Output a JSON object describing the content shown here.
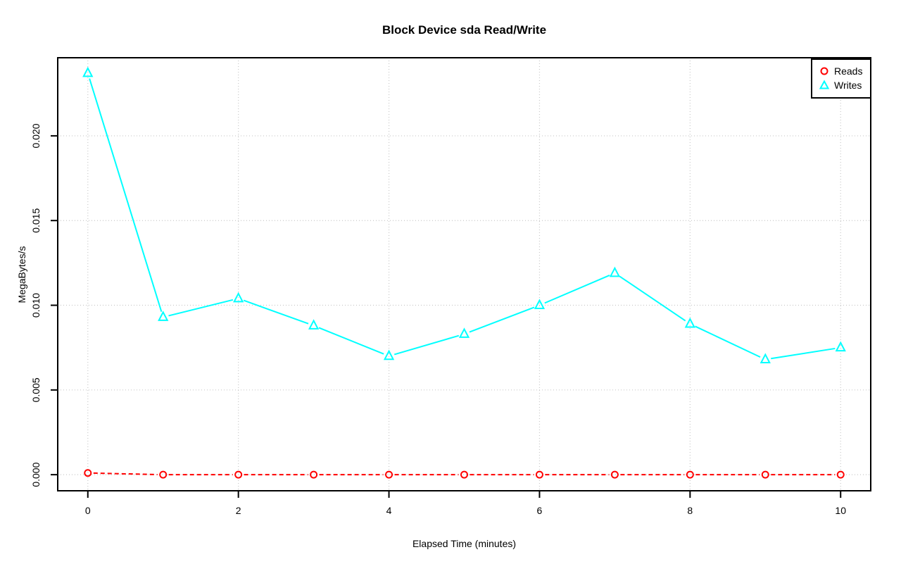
{
  "title": "Block Device sda Read/Write",
  "chart_data": {
    "type": "line",
    "title": "Block Device sda Read/Write",
    "xlabel": "Elapsed Time (minutes)",
    "ylabel": "MegaBytes/s",
    "x": [
      0,
      1,
      2,
      3,
      4,
      5,
      6,
      7,
      8,
      9,
      10
    ],
    "series": [
      {
        "name": "Reads",
        "color": "#FF0000",
        "marker": "circle",
        "line_style": "dashed",
        "values": [
          0.0001,
          0.0,
          0.0,
          0.0,
          0.0,
          0.0,
          0.0,
          0.0,
          0.0,
          0.0,
          0.0
        ]
      },
      {
        "name": "Writes",
        "color": "#00FFFF",
        "marker": "triangle",
        "line_style": "solid",
        "values": [
          0.0237,
          0.0093,
          0.0104,
          0.0088,
          0.007,
          0.0083,
          0.01,
          0.0119,
          0.0089,
          0.0068,
          0.0075
        ]
      }
    ],
    "x_ticks": [
      0,
      2,
      4,
      6,
      8,
      10
    ],
    "x_tick_labels": [
      "0",
      "2",
      "4",
      "6",
      "8",
      "10"
    ],
    "y_ticks": [
      0.0,
      0.005,
      0.01,
      0.015,
      0.02
    ],
    "y_tick_labels": [
      "0.000",
      "0.005",
      "0.010",
      "0.015",
      "0.020"
    ],
    "xlim": [
      -0.4,
      10.4
    ],
    "ylim": [
      -0.00095,
      0.02461
    ],
    "grid": true,
    "grid_color": "#C8C8C8",
    "axis_color": "#000000",
    "background": "#FFFFFF",
    "legend_position": "top-right"
  }
}
